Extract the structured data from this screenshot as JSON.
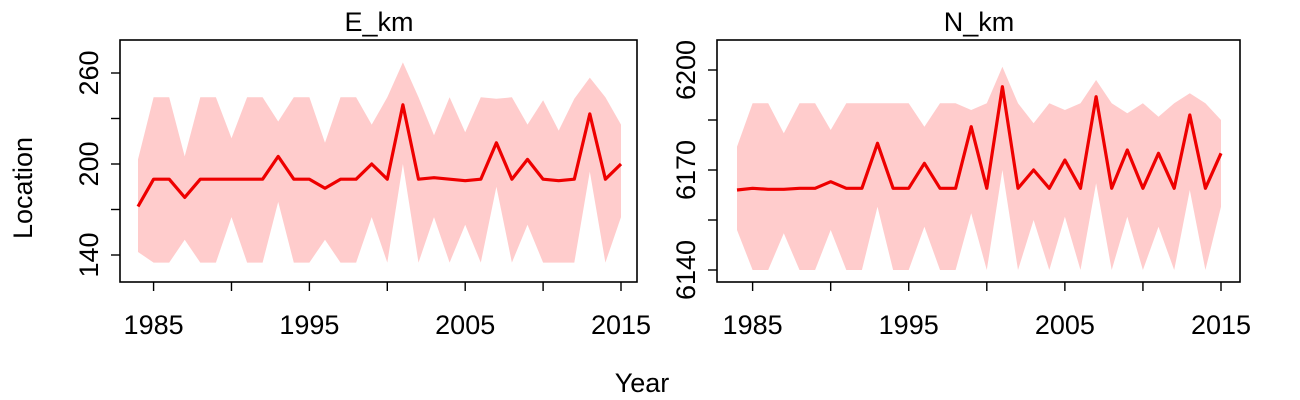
{
  "figure": {
    "xlabel": "Year",
    "ylabel": "Location"
  },
  "colors": {
    "line": "#ee0000",
    "band": "#ffcccc",
    "axis": "#000000"
  },
  "chart_data": [
    {
      "type": "line",
      "title": "E_km",
      "xlabel": "Year",
      "ylabel": "Location",
      "xlim": [
        1983,
        2016
      ],
      "ylim": [
        130,
        272
      ],
      "xticks": [
        1985,
        1995,
        2005,
        2015
      ],
      "yticks": [
        140,
        200,
        260
      ],
      "x": [
        1984,
        1985,
        1986,
        1987,
        1988,
        1989,
        1990,
        1991,
        1992,
        1993,
        1994,
        1995,
        1996,
        1997,
        1998,
        1999,
        2000,
        2001,
        2002,
        2003,
        2004,
        2005,
        2006,
        2007,
        2008,
        2009,
        2010,
        2011,
        2012,
        2013,
        2014,
        2015
      ],
      "series": [
        {
          "values": [
            172,
            190,
            190,
            178,
            190,
            190,
            190,
            190,
            190,
            205,
            190,
            190,
            184,
            190,
            190,
            200,
            190,
            239,
            190,
            191,
            190,
            189,
            190,
            214,
            190,
            203,
            190,
            189,
            190,
            233,
            190,
            200
          ],
          "lower": [
            142,
            135,
            135,
            150,
            135,
            135,
            165,
            135,
            135,
            175,
            135,
            135,
            150,
            135,
            135,
            165,
            135,
            200,
            135,
            165,
            135,
            160,
            135,
            185,
            135,
            160,
            135,
            135,
            135,
            195,
            135,
            165
          ],
          "upper": [
            203,
            244,
            244,
            205,
            244,
            244,
            217,
            244,
            244,
            228,
            244,
            244,
            214,
            244,
            244,
            226,
            244,
            267,
            244,
            219,
            244,
            221,
            244,
            243,
            244,
            226,
            242,
            222,
            243,
            257,
            244,
            226
          ]
        }
      ]
    },
    {
      "type": "line",
      "title": "N_km",
      "xlabel": "Year",
      "ylabel": "Location",
      "xlim": [
        1983,
        2016
      ],
      "ylim": [
        6135,
        6205
      ],
      "xticks": [
        1985,
        1995,
        2005,
        2015
      ],
      "yticks": [
        6140,
        6170,
        6200
      ],
      "x": [
        1984,
        1985,
        1986,
        1987,
        1988,
        1989,
        1990,
        1991,
        1992,
        1993,
        1994,
        1995,
        1996,
        1997,
        1998,
        1999,
        2000,
        2001,
        2002,
        2003,
        2004,
        2005,
        2006,
        2007,
        2008,
        2009,
        2010,
        2011,
        2012,
        2013,
        2014,
        2015
      ],
      "series": [
        {
          "values": [
            6164,
            6164.5,
            6164.2,
            6164.2,
            6164.5,
            6164.5,
            6166.5,
            6164.5,
            6164.5,
            6178,
            6164.5,
            6164.5,
            6172,
            6164.5,
            6164.5,
            6183,
            6164.5,
            6195,
            6164.5,
            6170,
            6164.5,
            6173,
            6164.5,
            6192,
            6164.5,
            6176,
            6164.5,
            6175,
            6164.5,
            6186.5,
            6164.5,
            6175
          ],
          "lower": [
            6152,
            6140,
            6140,
            6151,
            6140,
            6140,
            6152,
            6140,
            6140,
            6159,
            6140,
            6140,
            6153,
            6140,
            6140,
            6157,
            6140,
            6170,
            6140,
            6155,
            6140,
            6156,
            6140,
            6166,
            6140,
            6156,
            6140,
            6153,
            6140,
            6164,
            6140,
            6159
          ],
          "upper": [
            6177,
            6190,
            6190,
            6181,
            6190,
            6190,
            6182,
            6190,
            6190,
            6190,
            6190,
            6190,
            6183,
            6190,
            6190,
            6188,
            6190,
            6201,
            6190,
            6184,
            6190,
            6188,
            6190,
            6197,
            6190,
            6187,
            6190,
            6186,
            6190,
            6193,
            6190,
            6185
          ]
        }
      ]
    }
  ]
}
